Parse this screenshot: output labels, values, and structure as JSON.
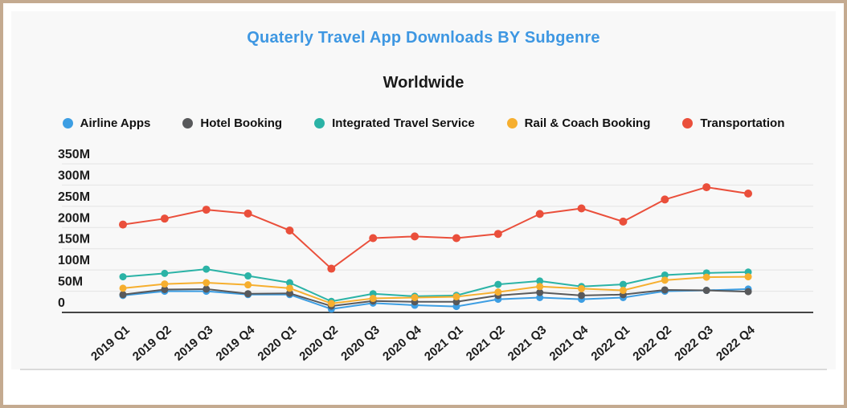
{
  "header": {
    "title": "Quaterly Travel App Downloads BY Subgenre",
    "subtitle": "Worldwide",
    "title_color": "#3e97e2"
  },
  "frame": {
    "border_color": "#c4aa90",
    "card_color": "#f8f8f8",
    "gridline_color": "#e3e3e3",
    "baseline_color": "#454545",
    "separator_color": "#cfcfcf"
  },
  "chart_data": {
    "type": "line",
    "title": "Quaterly Travel App Downloads BY Subgenre",
    "subtitle": "Worldwide",
    "unit": "M downloads",
    "grid": "horizontal",
    "legend_position": "top",
    "ylim": [
      0,
      350
    ],
    "y_ticks": [
      {
        "label": "0",
        "value": 0
      },
      {
        "label": "50M",
        "value": 50
      },
      {
        "label": "100M",
        "value": 100
      },
      {
        "label": "150M",
        "value": 150
      },
      {
        "label": "200M",
        "value": 200
      },
      {
        "label": "250M",
        "value": 250
      },
      {
        "label": "300M",
        "value": 300
      },
      {
        "label": "350M",
        "value": 350
      }
    ],
    "categories": [
      "2019 Q1",
      "2019 Q2",
      "2019 Q3",
      "2019 Q4",
      "2020 Q1",
      "2020 Q2",
      "2020 Q3",
      "2020 Q4",
      "2021 Q1",
      "2021 Q2",
      "2021 Q3",
      "2021 Q4",
      "2022 Q1",
      "2022 Q2",
      "2022 Q3",
      "2022 Q4"
    ],
    "series": [
      {
        "name": "Airline Apps",
        "color": "#3d9ee3",
        "values": [
          40,
          50,
          50,
          42,
          42,
          8,
          22,
          17,
          14,
          31,
          35,
          31,
          35,
          50,
          52,
          55
        ]
      },
      {
        "name": "Hotel Booking",
        "color": "#58595b",
        "values": [
          42,
          54,
          55,
          44,
          45,
          15,
          27,
          25,
          25,
          40,
          47,
          40,
          42,
          53,
          52,
          49
        ]
      },
      {
        "name": "Integrated Travel Service",
        "color": "#2bb3a6",
        "values": [
          84,
          92,
          102,
          86,
          70,
          26,
          44,
          38,
          40,
          66,
          74,
          61,
          66,
          88,
          93,
          95
        ]
      },
      {
        "name": "Rail & Coach Booking",
        "color": "#f6af2f",
        "values": [
          57,
          67,
          70,
          65,
          57,
          21,
          33,
          35,
          37,
          48,
          61,
          56,
          52,
          76,
          83,
          84
        ]
      },
      {
        "name": "Transportation",
        "color": "#ea4f3b",
        "values": [
          207,
          221,
          242,
          233,
          193,
          103,
          175,
          179,
          175,
          185,
          232,
          245,
          214,
          266,
          295,
          280
        ]
      }
    ]
  }
}
